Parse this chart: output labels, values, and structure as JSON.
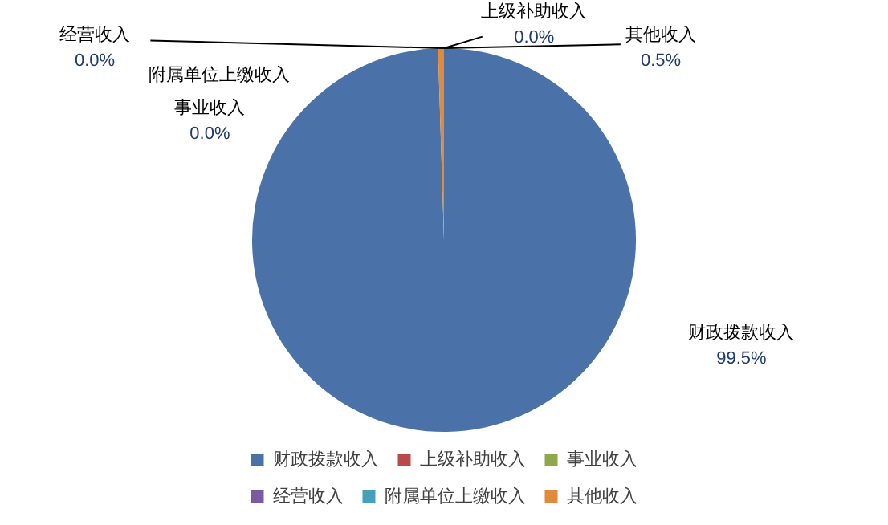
{
  "chart_data": {
    "type": "pie",
    "categories": [
      "财政拨款收入",
      "上级补助收入",
      "事业收入",
      "经营收入",
      "附属单位上缴收入",
      "其他收入"
    ],
    "values": [
      99.5,
      0,
      0,
      0,
      0,
      0.5
    ],
    "colors": [
      "#4a72a8",
      "#b94a48",
      "#8fa84e",
      "#7a5ba0",
      "#45a0b9",
      "#e08a3c"
    ],
    "value_labels": [
      "99.5%",
      "0.0%",
      "0.0%",
      "0.0%",
      null,
      "0.5%"
    ],
    "legend": "bottom"
  }
}
